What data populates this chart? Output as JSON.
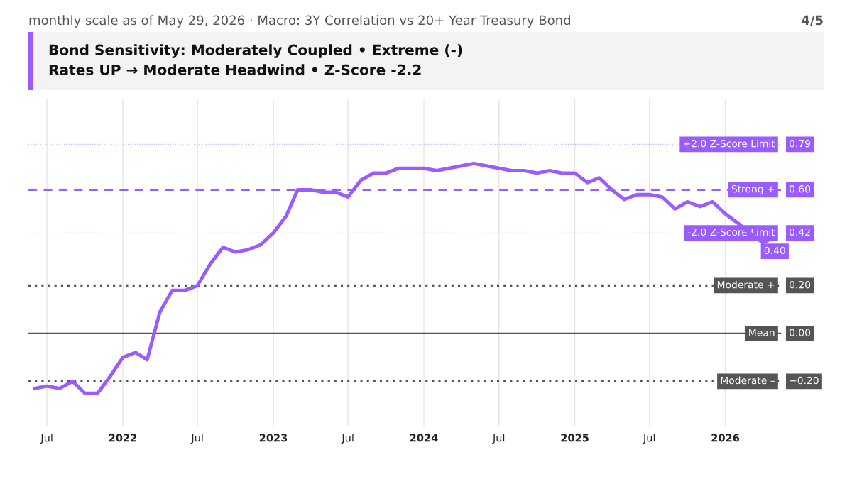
{
  "chart_data": {
    "type": "line",
    "title": "Bond Sensitivity: Moderately Coupled • Extreme (-)\nRates UP → Moderate Headwind • Z-Score -2.2",
    "subtitle": "monthly scale as of May 29, 2026 · Macro: 3Y Correlation vs 20+ Year Treasury Bond",
    "annotations": [
      "4/5"
    ],
    "x": [
      "2021-06",
      "2021-07",
      "2021-08",
      "2021-09",
      "2021-10",
      "2021-11",
      "2021-12",
      "2022-01",
      "2022-02",
      "2022-03",
      "2022-04",
      "2022-05",
      "2022-06",
      "2022-07",
      "2022-08",
      "2022-09",
      "2022-10",
      "2022-11",
      "2022-12",
      "2023-01",
      "2023-02",
      "2023-03",
      "2023-04",
      "2023-05",
      "2023-06",
      "2023-07",
      "2023-08",
      "2023-09",
      "2023-10",
      "2023-11",
      "2023-12",
      "2024-01",
      "2024-02",
      "2024-03",
      "2024-04",
      "2024-05",
      "2024-06",
      "2024-07",
      "2024-08",
      "2024-09",
      "2024-10",
      "2024-11",
      "2024-12",
      "2025-01",
      "2025-02",
      "2025-03",
      "2025-04",
      "2025-05",
      "2025-06",
      "2025-07",
      "2025-08",
      "2025-09",
      "2025-10",
      "2025-11",
      "2025-12",
      "2026-01",
      "2026-02",
      "2026-03",
      "2026-04",
      "2026-05"
    ],
    "series": [
      {
        "color": "#9b5cff",
        "values": [
          -0.23,
          -0.22,
          -0.23,
          -0.2,
          -0.25,
          -0.25,
          -0.18,
          -0.1,
          -0.08,
          -0.11,
          0.09,
          0.18,
          0.18,
          0.2,
          0.29,
          0.36,
          0.34,
          0.35,
          0.37,
          0.42,
          0.49,
          0.6,
          0.6,
          0.59,
          0.59,
          0.57,
          0.64,
          0.67,
          0.67,
          0.69,
          0.69,
          0.69,
          0.68,
          0.69,
          0.7,
          0.71,
          0.7,
          0.69,
          0.68,
          0.68,
          0.67,
          0.68,
          0.67,
          0.67,
          0.63,
          0.65,
          0.6,
          0.56,
          0.58,
          0.58,
          0.57,
          0.52,
          0.55,
          0.53,
          0.55,
          0.5,
          0.46,
          0.42,
          0.38,
          0.4
        ],
        "value_labels": [
          null,
          null,
          null,
          null,
          null,
          null,
          null,
          null,
          null,
          null,
          null,
          null,
          null,
          null,
          null,
          null,
          null,
          null,
          null,
          null,
          null,
          null,
          null,
          null,
          null,
          null,
          null,
          null,
          null,
          null,
          null,
          null,
          null,
          null,
          null,
          null,
          null,
          null,
          null,
          null,
          null,
          null,
          null,
          null,
          null,
          null,
          null,
          null,
          null,
          null,
          null,
          null,
          null,
          null,
          null,
          null,
          null,
          null,
          null,
          "0.40"
        ]
      }
    ],
    "xlim": [
      "2021-05-17",
      "2026-05-16"
    ],
    "xticks": [
      {
        "value": "2021-07",
        "label": "Jul"
      },
      {
        "value": "2022-01",
        "label": "2022"
      },
      {
        "value": "2022-07",
        "label": "Jul"
      },
      {
        "value": "2023-01",
        "label": "2023"
      },
      {
        "value": "2023-07",
        "label": "Jul"
      },
      {
        "value": "2024-01",
        "label": "2024"
      },
      {
        "value": "2024-07",
        "label": "Jul"
      },
      {
        "value": "2025-01",
        "label": "2025"
      },
      {
        "value": "2025-07",
        "label": "Jul"
      },
      {
        "value": "2026-01",
        "label": "2026"
      }
    ],
    "ylim": [
      -0.386,
      0.978
    ],
    "yticks": [
      {
        "value": 0.79,
        "label": "0.79"
      },
      {
        "value": 0.6,
        "label": "0.60"
      },
      {
        "value": 0.42,
        "label": "0.42"
      },
      {
        "value": 0.2,
        "label": "0.20"
      },
      {
        "value": 0,
        "label": "0.00"
      },
      {
        "value": -0.2,
        "label": "−0.20"
      }
    ],
    "ref_lines": [
      {
        "axis": "y",
        "value": 0.79,
        "label": "+2.0 Z-Score Limit",
        "color": "#9b5cff",
        "line_style": "dotted"
      },
      {
        "axis": "y",
        "value": 0.6,
        "label": "Strong +",
        "color": "#9b5cff",
        "line_style": "dashed"
      },
      {
        "axis": "y",
        "value": 0.42,
        "label": "-2.0 Z-Score Limit",
        "color": "#9b5cff",
        "line_style": "dotted"
      },
      {
        "axis": "y",
        "value": 0.2,
        "label": "Moderate +",
        "color": "#555555",
        "line_style": "dotted"
      },
      {
        "axis": "y",
        "value": 0,
        "label": "Mean",
        "color": "#555555",
        "line_style": "solid"
      },
      {
        "axis": "y",
        "value": -0.2,
        "label": "Moderate –",
        "color": "#555555",
        "line_style": "dotted"
      }
    ],
    "grid": "x",
    "legend": false,
    "marker": "none",
    "line_style": "solid"
  }
}
